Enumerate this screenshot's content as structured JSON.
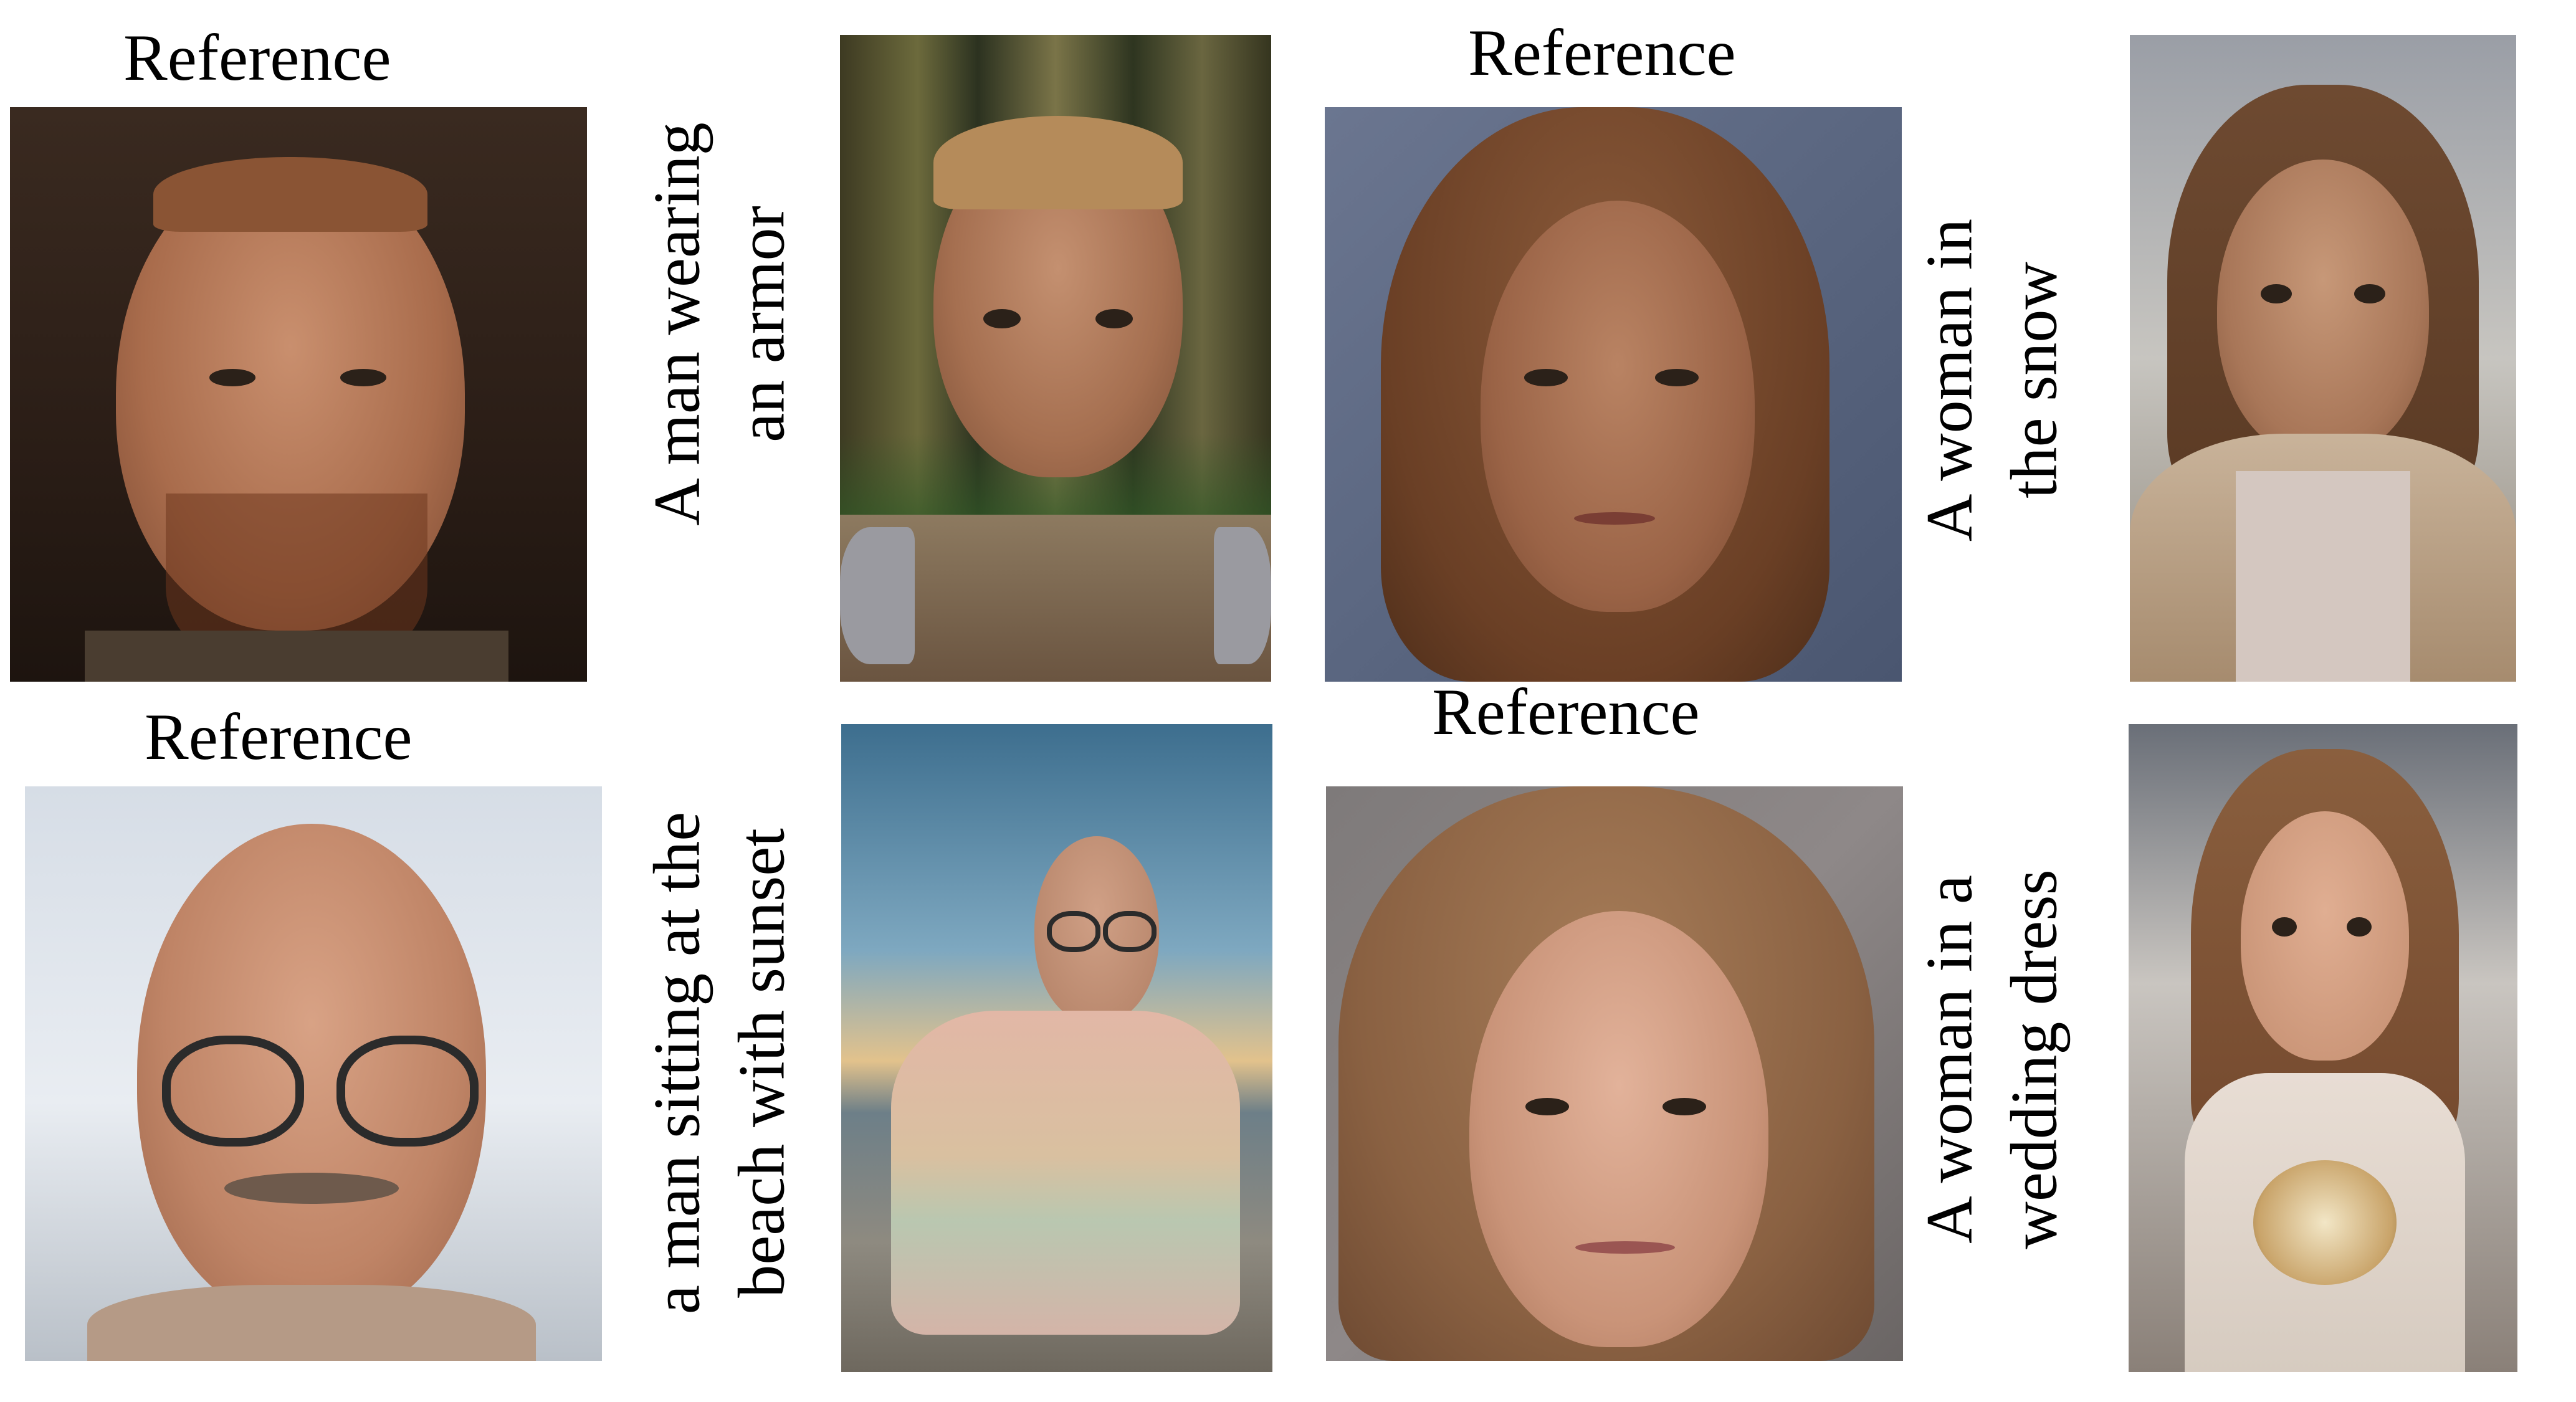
{
  "reference_labels": [
    "Reference",
    "Reference",
    "Reference",
    "Reference"
  ],
  "prompts": {
    "armor": [
      "A man wearing",
      "an armor"
    ],
    "snow": [
      "A woman in",
      "the snow"
    ],
    "beach": [
      "a man sitting at the",
      "beach with sunset"
    ],
    "wedding": [
      "A woman in a",
      "wedding dress"
    ]
  }
}
